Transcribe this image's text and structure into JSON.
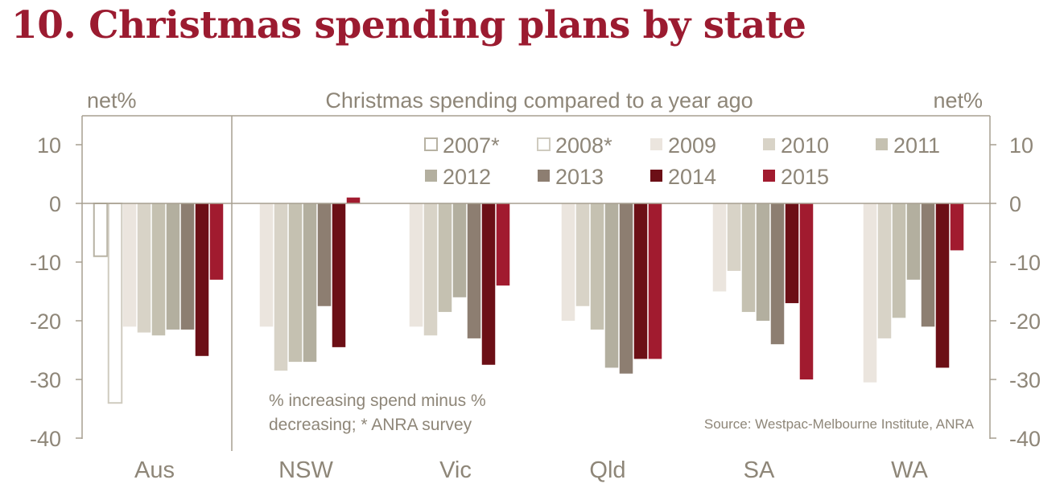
{
  "page_title": "10. Christmas spending plans by state",
  "chart_data": {
    "type": "bar",
    "title": "Christmas spending compared to a year ago",
    "ylabel_left": "net%",
    "ylabel_right": "net%",
    "ylim": [
      -40,
      15
    ],
    "yticks": [
      10,
      0,
      -10,
      -20,
      -30,
      -40
    ],
    "categories": [
      "Aus",
      "NSW",
      "Vic",
      "Qld",
      "SA",
      "WA"
    ],
    "series": [
      {
        "name": "2007*",
        "color": "#ffffff",
        "stroke": "#b7b2a3",
        "values": [
          -9,
          null,
          null,
          null,
          null,
          null
        ]
      },
      {
        "name": "2008*",
        "color": "#ffffff",
        "stroke": "#cfcbbf",
        "values": [
          -34,
          null,
          null,
          null,
          null,
          null
        ]
      },
      {
        "name": "2009",
        "color": "#ebe5de",
        "values": [
          -21,
          -21,
          -21,
          -20,
          -15,
          -30.5
        ]
      },
      {
        "name": "2010",
        "color": "#d8d3c7",
        "values": [
          -22,
          -28.5,
          -22.5,
          -17.5,
          -11.5,
          -23
        ]
      },
      {
        "name": "2011",
        "color": "#c5c1b1",
        "values": [
          -22.5,
          -27,
          -18.5,
          -21.5,
          -18.5,
          -19.5
        ]
      },
      {
        "name": "2012",
        "color": "#b3af9f",
        "values": [
          -21.5,
          -27,
          -16,
          -28,
          -20,
          -13
        ]
      },
      {
        "name": "2013",
        "color": "#8d7e71",
        "values": [
          -21.5,
          -17.5,
          -23,
          -29,
          -24,
          -21
        ]
      },
      {
        "name": "2014",
        "color": "#6c0f16",
        "values": [
          -26,
          -24.5,
          -27.5,
          -26.5,
          -17,
          -28
        ]
      },
      {
        "name": "2015",
        "color": "#a11b2f",
        "values": [
          -13,
          1,
          -14,
          -26.5,
          -30,
          -8
        ]
      }
    ],
    "note": [
      "% increasing spend minus %",
      "decreasing; * ANRA survey"
    ],
    "source": "Source: Westpac-Melbourne Institute, ANRA"
  }
}
